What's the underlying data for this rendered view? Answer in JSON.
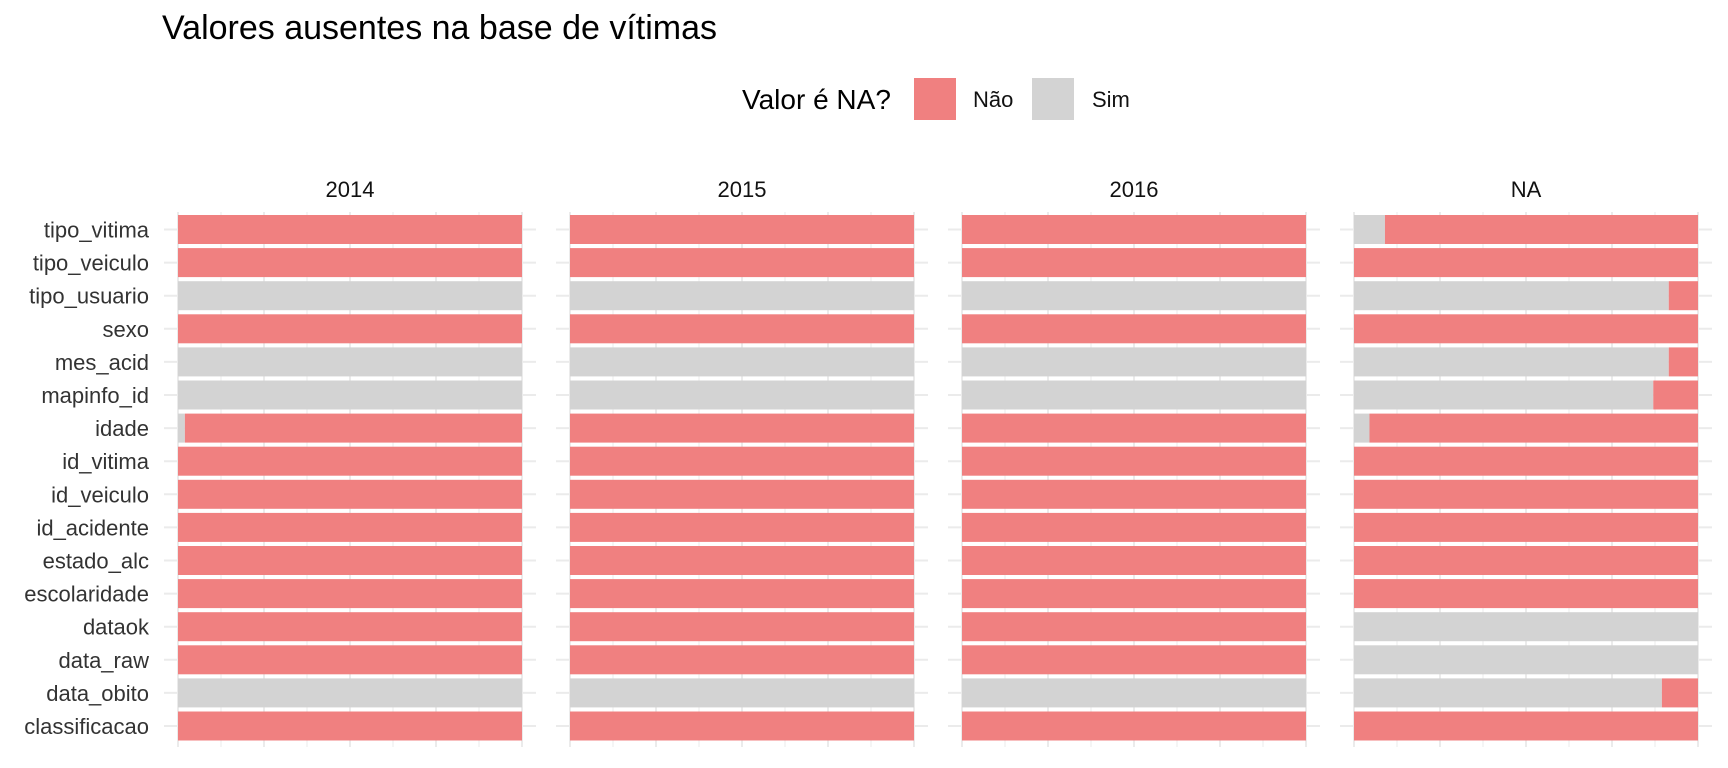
{
  "chart_data": {
    "type": "bar",
    "orientation": "horizontal",
    "stacked": true,
    "title": "Valores ausentes na base de vítimas",
    "legend": {
      "title": "Valor é NA?",
      "placement": "top",
      "entries": [
        {
          "key": "nao",
          "label": "Não",
          "color": "#F08080"
        },
        {
          "key": "sim",
          "label": "Sim",
          "color": "#D3D3D3"
        }
      ]
    },
    "xlim": [
      0,
      1
    ],
    "grid": true,
    "categories": [
      "tipo_vitima",
      "tipo_veiculo",
      "tipo_usuario",
      "sexo",
      "mes_acid",
      "mapinfo_id",
      "idade",
      "id_vitima",
      "id_veiculo",
      "id_acidente",
      "estado_alc",
      "escolaridade",
      "dataok",
      "data_raw",
      "data_obito",
      "classificacao"
    ],
    "facets": [
      {
        "label": "2014",
        "sim_fraction": [
          0,
          0,
          1,
          0,
          1,
          1,
          0.02,
          0,
          0,
          0,
          0,
          0,
          0,
          0,
          1,
          0
        ]
      },
      {
        "label": "2015",
        "sim_fraction": [
          0,
          0,
          1,
          0,
          1,
          1,
          0,
          0,
          0,
          0,
          0,
          0,
          0,
          0,
          1,
          0
        ]
      },
      {
        "label": "2016",
        "sim_fraction": [
          0,
          0,
          1,
          0,
          1,
          1,
          0,
          0,
          0,
          0,
          0,
          0,
          0,
          0,
          1,
          0
        ]
      },
      {
        "label": "NA",
        "sim_fraction": [
          0.09,
          0,
          0.915,
          0,
          0.915,
          0.87,
          0.045,
          0,
          0,
          0,
          0,
          0,
          1,
          1,
          0.895,
          0
        ]
      }
    ]
  }
}
